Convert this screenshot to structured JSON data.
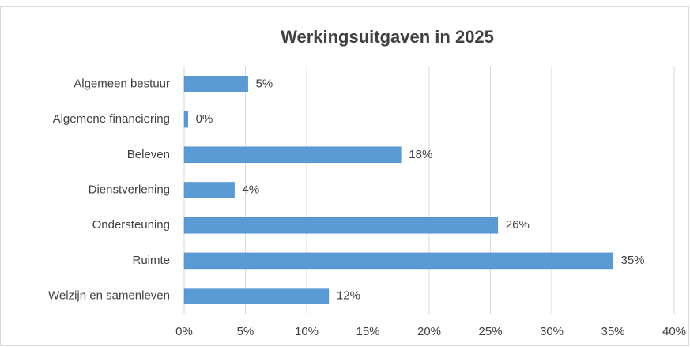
{
  "chart_data": {
    "type": "bar",
    "orientation": "horizontal",
    "title": "Werkingsuitgaven in 2025",
    "categories": [
      "Algemeen bestuur",
      "Algemene financiering",
      "Beleven",
      "Dienstverlening",
      "Ondersteuning",
      "Ruimte",
      "Welzijn en samenleven"
    ],
    "values": [
      5.2,
      0.3,
      17.7,
      4.1,
      25.6,
      35.0,
      11.8
    ],
    "value_labels": [
      "5%",
      "0%",
      "18%",
      "4%",
      "26%",
      "35%",
      "12%"
    ],
    "color": "#5b9bd5",
    "xlim": [
      0,
      40
    ],
    "xticks": [
      {
        "value": 0,
        "label": "0%"
      },
      {
        "value": 5,
        "label": "5%"
      },
      {
        "value": 10,
        "label": "10%"
      },
      {
        "value": 15,
        "label": "15%"
      },
      {
        "value": 20,
        "label": "20%"
      },
      {
        "value": 25,
        "label": "25%"
      },
      {
        "value": 30,
        "label": "30%"
      },
      {
        "value": 35,
        "label": "35%"
      },
      {
        "value": 40,
        "label": "40%"
      }
    ],
    "grid": true
  }
}
